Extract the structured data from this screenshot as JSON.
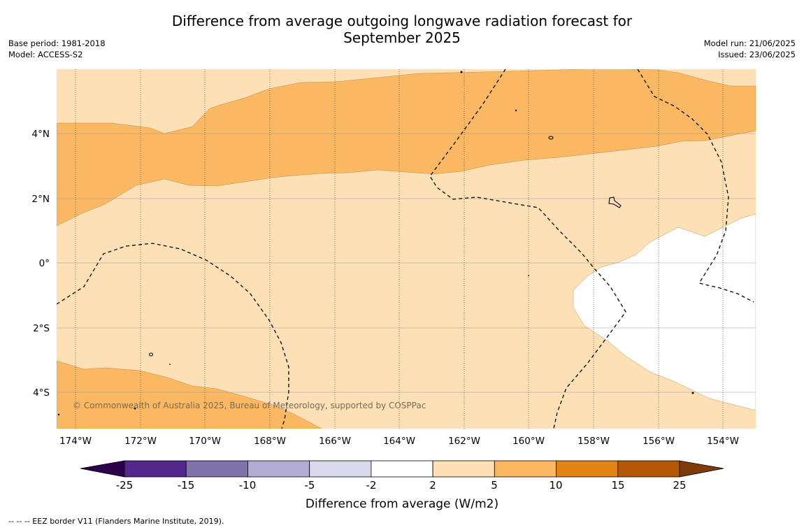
{
  "title_line1": "Difference from average outgoing longwave radiation forecast for",
  "title_line2": "September 2025",
  "left_meta": {
    "base_period": "Base period: 1981-2018",
    "model": "Model: ACCESS-S2"
  },
  "right_meta": {
    "model_run": "Model run: 21/06/2025",
    "issued": "Issued: 23/06/2025"
  },
  "lat_labels": [
    "4°N",
    "2°N",
    "0°",
    "2°S",
    "4°S"
  ],
  "lon_labels": [
    "174°W",
    "172°W",
    "170°W",
    "168°W",
    "166°W",
    "164°W",
    "162°W",
    "160°W",
    "158°W",
    "156°W",
    "154°W"
  ],
  "copyright": "© Commonwealth of Australia 2025, Bureau of Meteorology, supported by COSPPac",
  "colorbar": {
    "title": "Difference from average (W/m2)",
    "tick_labels": [
      "-25",
      "-15",
      "-10",
      "-5",
      "-2",
      "2",
      "5",
      "10",
      "15",
      "25"
    ],
    "colors": [
      "#54278f",
      "#8073ac",
      "#b2abd2",
      "#d8daeb",
      "#ffffff",
      "#fde0b6",
      "#fbb862",
      "#e08214",
      "#b35806"
    ],
    "under_color": "#2d004b",
    "over_color": "#7f3b08"
  },
  "map_colors": {
    "band_5_10": "#fbb862",
    "band_2_5": "#fde0b6",
    "band_neutral": "#ffffff"
  },
  "footnote": "--  --  -- EEZ border V11 (Flanders Marine Institute, 2019)."
}
